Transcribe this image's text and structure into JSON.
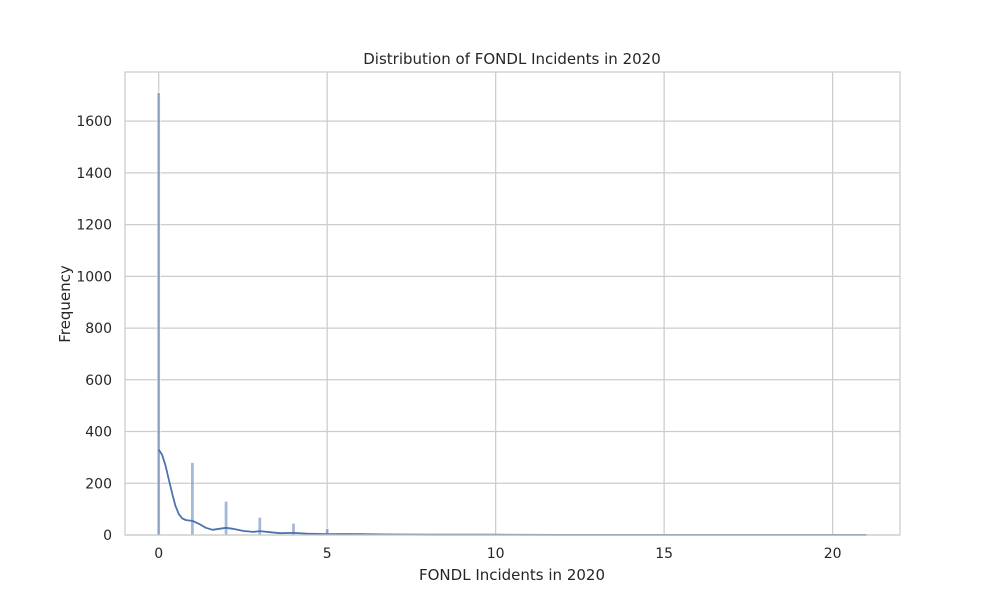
{
  "chart_data": {
    "type": "bar",
    "subtype": "histogram-with-kde",
    "title": "Distribution of FONDL Incidents in 2020",
    "xlabel": "FONDL Incidents in 2020",
    "ylabel": "Frequency",
    "xlim": [
      -1,
      22
    ],
    "ylim": [
      0,
      1790
    ],
    "xticks": [
      0,
      5,
      10,
      15,
      20
    ],
    "yticks": [
      0,
      200,
      400,
      600,
      800,
      1000,
      1200,
      1400,
      1600
    ],
    "grid": true,
    "legend": "none",
    "bar_color": "#4c72b0",
    "bar_opacity": 0.5,
    "kde_color": "#4c72b0",
    "bin_width": 0.1,
    "bins": [
      {
        "x": 0,
        "count": 1710
      },
      {
        "x": 1,
        "count": 280
      },
      {
        "x": 2,
        "count": 130
      },
      {
        "x": 3,
        "count": 68
      },
      {
        "x": 4,
        "count": 45
      },
      {
        "x": 5,
        "count": 25
      },
      {
        "x": 6,
        "count": 8
      },
      {
        "x": 7,
        "count": 6
      },
      {
        "x": 8,
        "count": 3
      },
      {
        "x": 9,
        "count": 2
      },
      {
        "x": 10,
        "count": 2
      },
      {
        "x": 11,
        "count": 1
      },
      {
        "x": 12,
        "count": 1
      },
      {
        "x": 14,
        "count": 1
      },
      {
        "x": 16,
        "count": 1
      },
      {
        "x": 21,
        "count": 1
      }
    ],
    "kde": {
      "x": [
        0,
        0.1,
        0.2,
        0.3,
        0.4,
        0.5,
        0.6,
        0.7,
        0.8,
        0.9,
        1.0,
        1.2,
        1.4,
        1.6,
        1.8,
        2.0,
        2.2,
        2.5,
        2.8,
        3.0,
        3.3,
        3.6,
        4.0,
        4.4,
        5.0,
        5.5,
        6.0,
        7.0,
        8.0,
        9.0,
        10,
        12,
        14,
        16,
        18,
        21
      ],
      "y": [
        330,
        310,
        270,
        215,
        160,
        112,
        80,
        64,
        58,
        56,
        55,
        43,
        28,
        20,
        24,
        28,
        24,
        16,
        12,
        15,
        11,
        7,
        8,
        5,
        3,
        4,
        3,
        2,
        1,
        1,
        1,
        0.5,
        0.5,
        0.5,
        0.3,
        0.2
      ]
    }
  }
}
